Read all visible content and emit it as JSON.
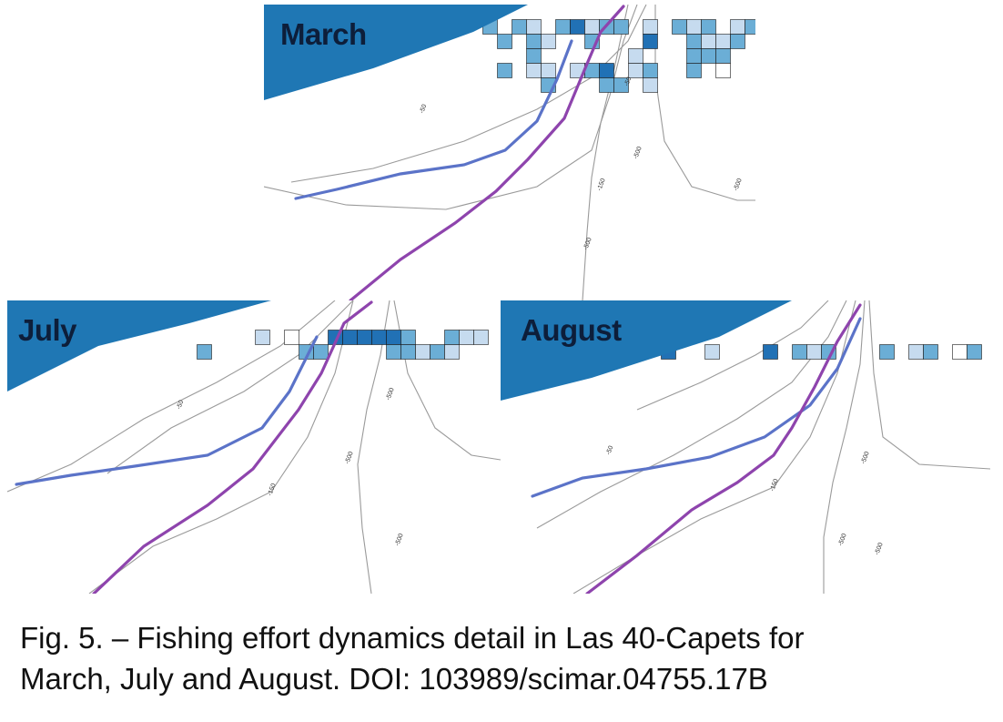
{
  "panels": [
    {
      "id": "march",
      "label": "March"
    },
    {
      "id": "july",
      "label": "July"
    },
    {
      "id": "august",
      "label": "August"
    }
  ],
  "depth_labels": [
    "-50",
    "-150",
    "-500"
  ],
  "colors": {
    "land": "#1f77b4",
    "effort_scale": [
      "#ffffff",
      "#c6dbef",
      "#6baed6",
      "#2171b5",
      "#08306b"
    ],
    "cell_border": "#1a1a1a",
    "isobath": "#9a9a9a",
    "line_blue": "#5b73c8",
    "line_purple": "#8e44ad"
  },
  "caption": {
    "line1": "Fig. 5. – Fishing effort dynamics detail in Las 40-Capets for",
    "line2": "March, July and August. DOI: 103989/scimar.04755.17B"
  }
}
